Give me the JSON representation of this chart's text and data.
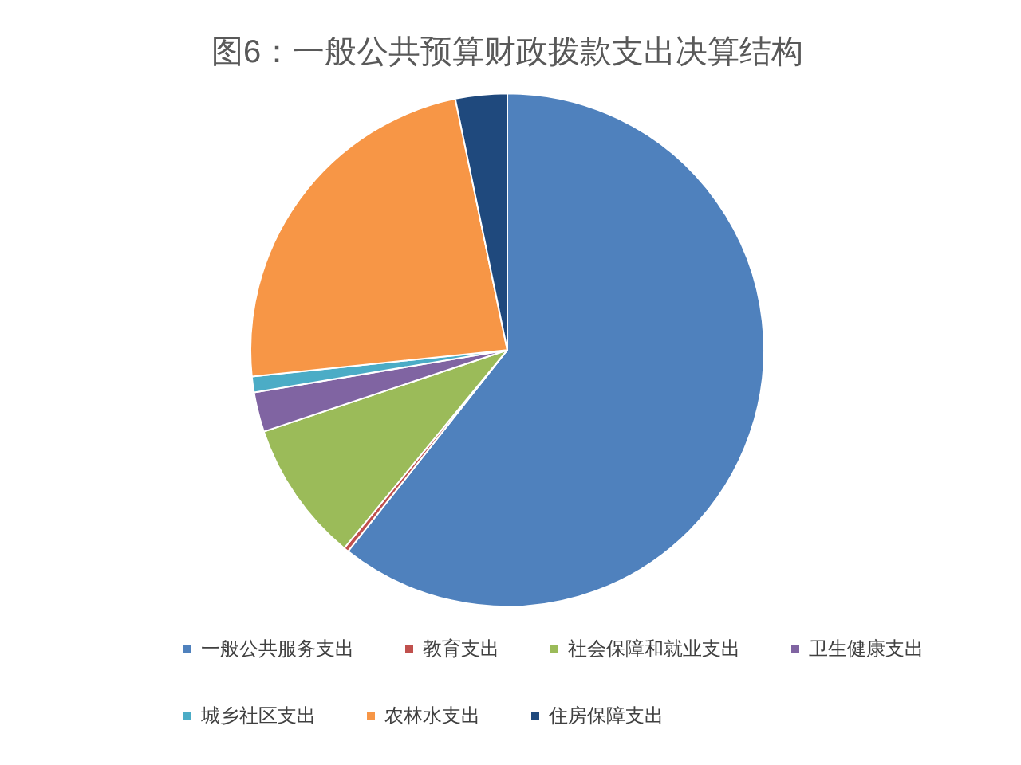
{
  "chart_data": {
    "type": "pie",
    "title": "图6：一般公共预算财政拨款支出决算结构",
    "categories": [
      "一般公共服务支出",
      "教育支出",
      "社会保障和就业支出",
      "卫生健康支出",
      "城乡社区支出",
      "农林水支出",
      "住房保障支出"
    ],
    "values": [
      60.65,
      0.3,
      8.9,
      2.5,
      1.0,
      23.4,
      3.25
    ],
    "colors": [
      "#4f81bd",
      "#c0504d",
      "#9bbb59",
      "#8064a2",
      "#4bacc6",
      "#f79646",
      "#1f497d"
    ],
    "legend": "bottom"
  }
}
